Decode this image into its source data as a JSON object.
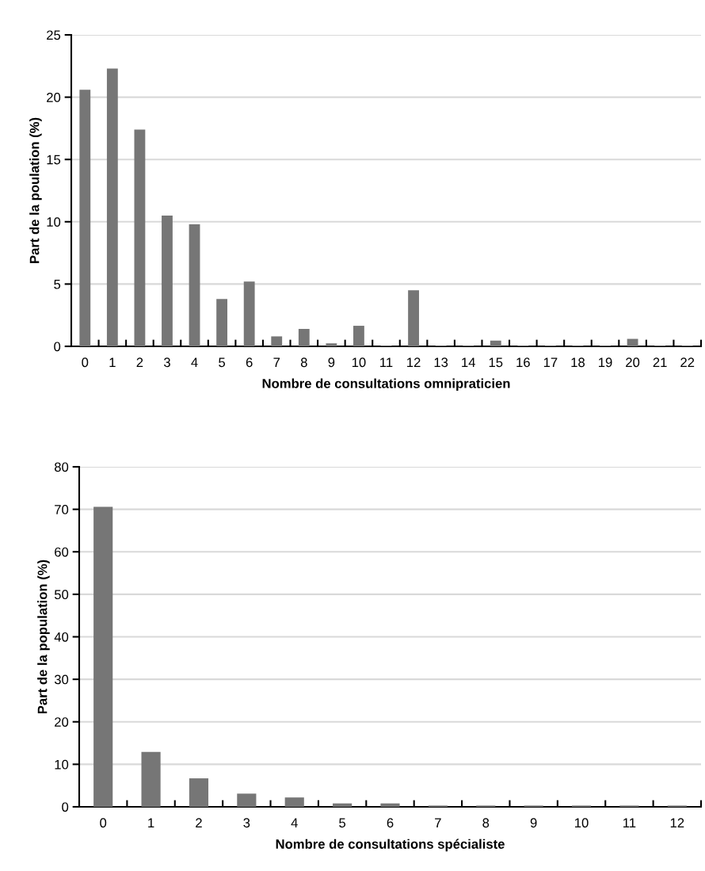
{
  "chart_data": [
    {
      "type": "bar",
      "xlabel": "Nombre de consultations omnipraticien",
      "ylabel": "Part de la poulation (%)",
      "categories": [
        "0",
        "1",
        "2",
        "3",
        "4",
        "5",
        "6",
        "7",
        "8",
        "9",
        "10",
        "11",
        "12",
        "13",
        "14",
        "15",
        "16",
        "17",
        "18",
        "19",
        "20",
        "21",
        "22"
      ],
      "values": [
        20.6,
        22.3,
        17.4,
        10.5,
        9.8,
        3.8,
        5.2,
        0.8,
        1.4,
        0.24,
        1.65,
        0.05,
        4.5,
        0.05,
        0.05,
        0.46,
        0.05,
        0.05,
        0.05,
        0.05,
        0.6,
        0.05,
        0.05
      ],
      "color": "#767676",
      "ylim": [
        0,
        25
      ],
      "yticks": [
        0,
        5,
        10,
        15,
        20,
        25
      ],
      "grid": "y"
    },
    {
      "type": "bar",
      "xlabel": "Nombre de consultations spécialiste",
      "ylabel": "Part de la population (%)",
      "categories": [
        "0",
        "1",
        "2",
        "3",
        "4",
        "5",
        "6",
        "7",
        "8",
        "9",
        "10",
        "11",
        "12"
      ],
      "values": [
        70.6,
        12.9,
        6.7,
        3.1,
        2.2,
        0.8,
        0.8,
        0.3,
        0.3,
        0.3,
        0.3,
        0.3,
        0.3
      ],
      "color": "#767676",
      "ylim": [
        0,
        80
      ],
      "yticks": [
        0,
        10,
        20,
        30,
        40,
        50,
        60,
        70,
        80
      ],
      "grid": "y"
    }
  ]
}
